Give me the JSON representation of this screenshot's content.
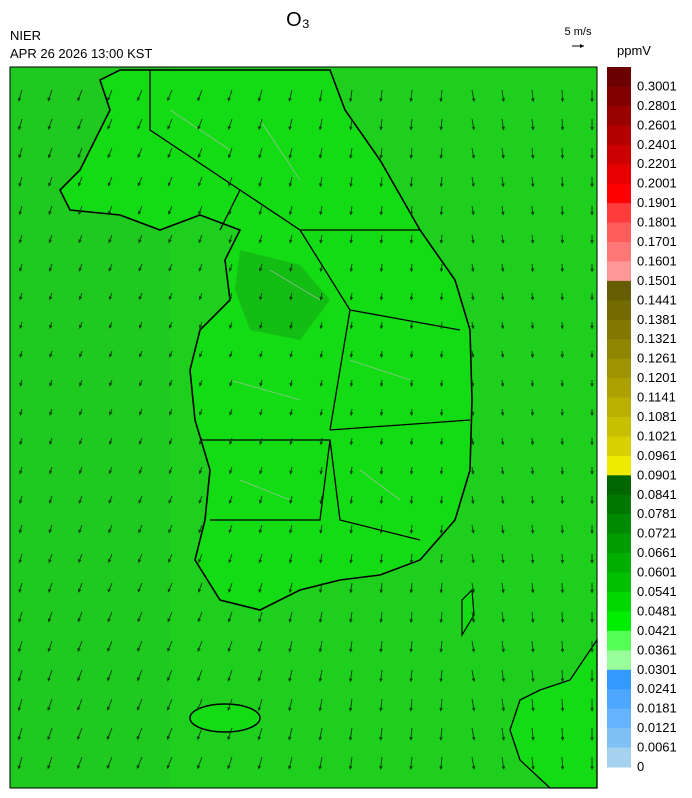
{
  "header": {
    "title": "O₃",
    "agency": "NIER",
    "timestamp": "APR 26 2026 13:00 KST"
  },
  "wind_legend": {
    "label": "5 m/s"
  },
  "colorbar": {
    "unit": "ppmV",
    "labels": [
      "0.3001",
      "0.2801",
      "0.2601",
      "0.2401",
      "0.2201",
      "0.2001",
      "0.1901",
      "0.1801",
      "0.1701",
      "0.1601",
      "0.1501",
      "0.1441",
      "0.1381",
      "0.1321",
      "0.1261",
      "0.1201",
      "0.1141",
      "0.1081",
      "0.1021",
      "0.0961",
      "0.0901",
      "0.0841",
      "0.0781",
      "0.0721",
      "0.0661",
      "0.0601",
      "0.0541",
      "0.0481",
      "0.0421",
      "0.0361",
      "0.0301",
      "0.0241",
      "0.0181",
      "0.0121",
      "0.0061",
      "0"
    ],
    "colors": [
      "#6b0000",
      "#800000",
      "#990000",
      "#b30000",
      "#cc0000",
      "#e60000",
      "#ff0000",
      "#ff3b3b",
      "#ff5c5c",
      "#ff7777",
      "#ff9999",
      "#665c00",
      "#746a00",
      "#827700",
      "#908500",
      "#9e9300",
      "#aca100",
      "#bab000",
      "#c8bf00",
      "#d8d000",
      "#eeea00",
      "#006600",
      "#007800",
      "#008a00",
      "#009c00",
      "#00ae00",
      "#00c000",
      "#00d800",
      "#00ee00",
      "#55ff55",
      "#99ff99",
      "#3399ff",
      "#4da6ff",
      "#66b3ff",
      "#80c0f5",
      "#a6d2f0"
    ]
  }
}
